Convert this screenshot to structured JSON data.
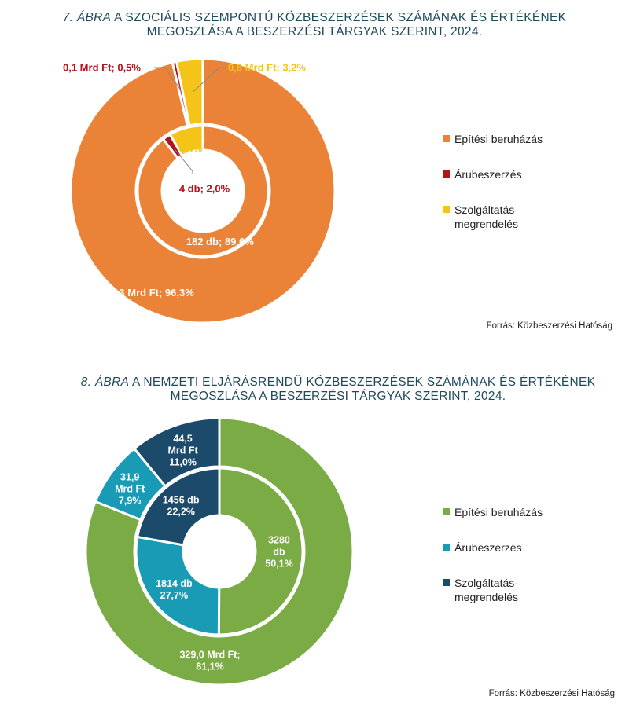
{
  "figure7": {
    "title_num": "7. ÁBRA",
    "title_rest": " A SZOCIÁLIS SZEMPONTÚ KÖZBESZERZÉSEK SZÁMÁNAK ÉS ÉRTÉKÉNEK",
    "title_line2": "MEGOSZLÁSA A BESZERZÉSI TÁRGYAK SZERINT, 2024.",
    "source": "Forrás: Közbeszerzési Hatóság"
  },
  "figure8": {
    "title_num": "8. ÁBRA",
    "title_rest": " A NEMZETI ELJÁRÁSRENDŰ KÖZBESZERZÉSEK SZÁMÁNAK ÉS ÉRTÉKÉNEK",
    "title_line2": "MEGOSZLÁSA A BESZERZÉSI TÁRGYAK SZERINT, 2024.",
    "source": "Forrás: Közbeszerzési Hatóság"
  },
  "chart_data": [
    {
      "type": "pie",
      "variant": "nested-donut",
      "categories": [
        "Építési beruházás",
        "Árubeszerzés",
        "Szolgáltatás-megrendelés"
      ],
      "colors": [
        "#ea8337",
        "#b3141a",
        "#f5c418"
      ],
      "label_colors": [
        "#ffffff",
        "#b3141a",
        "#f5c418"
      ],
      "series": [
        {
          "ring": "outer",
          "values": [
            96.3,
            0.5,
            3.2
          ],
          "labels": [
            "18,3 Mrd Ft; 96,3%",
            "0,1 Mrd Ft; 0,5%",
            "0,6 Mrd Ft; 3,2%"
          ]
        },
        {
          "ring": "inner",
          "values": [
            89.6,
            2.0,
            8.4
          ],
          "labels": [
            "182 db; 89,6%",
            "4 db; 2,0%",
            "17 db;\n8,4%"
          ]
        }
      ],
      "legend": [
        "Építési beruházás",
        "Árubeszerzés",
        "Szolgáltatás-\nmegrendelés"
      ],
      "legend_position": "right"
    },
    {
      "type": "pie",
      "variant": "nested-donut",
      "categories": [
        "Építési beruházás",
        "Árubeszerzés",
        "Szolgáltatás-megrendelés"
      ],
      "colors": [
        "#7aab44",
        "#1a9bb5",
        "#1b4a6b"
      ],
      "label_colors": [
        "#ffffff",
        "#ffffff",
        "#ffffff"
      ],
      "series": [
        {
          "ring": "outer",
          "values": [
            81.1,
            7.9,
            11.0
          ],
          "labels": [
            "329,0 Mrd Ft;\n81,1%",
            "31,9\nMrd Ft\n7,9%",
            "44,5\nMrd Ft\n11,0%"
          ]
        },
        {
          "ring": "inner",
          "values": [
            50.1,
            27.7,
            22.2
          ],
          "labels": [
            "3280\ndb\n50,1%",
            "1814 db\n27,7%",
            "1456 db\n22,2%"
          ]
        }
      ],
      "legend": [
        "Építési beruházás",
        "Árubeszerzés",
        "Szolgáltatás-\nmegrendelés"
      ],
      "legend_position": "right"
    }
  ]
}
